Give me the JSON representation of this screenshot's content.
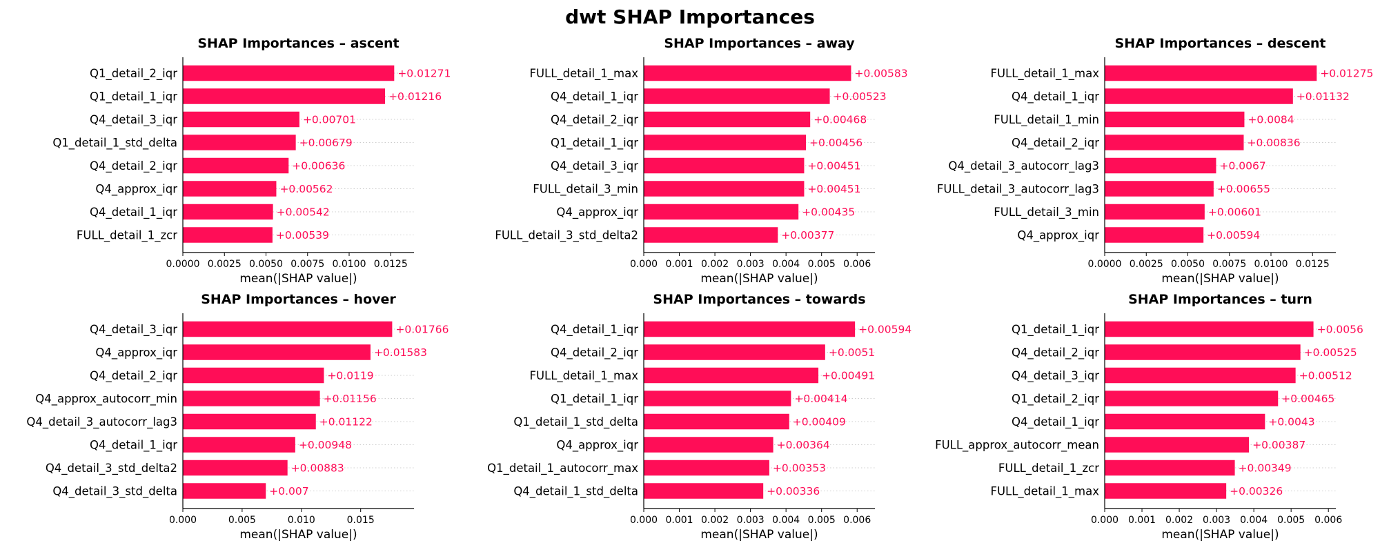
{
  "suptitle": "dwt SHAP Importances",
  "colors": {
    "bar": "#ff0d57",
    "label": "#ff0d57",
    "axis": "#000000",
    "guide": "#cccccc"
  },
  "chart_data": [
    {
      "type": "bar",
      "orientation": "horizontal",
      "title": "SHAP Importances – ascent",
      "xlabel": "mean(|SHAP value|)",
      "xlim": [
        0,
        0.0139
      ],
      "xticks": [
        "0.0000",
        "0.0025",
        "0.0050",
        "0.0075",
        "0.0100",
        "0.0125"
      ],
      "xtick_values": [
        0,
        0.0025,
        0.005,
        0.0075,
        0.01,
        0.0125
      ],
      "categories": [
        "Q1_detail_2_iqr",
        "Q1_detail_1_iqr",
        "Q4_detail_3_iqr",
        "Q1_detail_1_std_delta",
        "Q4_detail_2_iqr",
        "Q4_approx_iqr",
        "Q4_detail_1_iqr",
        "FULL_detail_1_zcr"
      ],
      "values": [
        0.01271,
        0.01216,
        0.00701,
        0.00679,
        0.00636,
        0.00562,
        0.00542,
        0.00539
      ],
      "value_labels": [
        "+0.01271",
        "+0.01216",
        "+0.00701",
        "+0.00679",
        "+0.00636",
        "+0.00562",
        "+0.00542",
        "+0.00539"
      ]
    },
    {
      "type": "bar",
      "orientation": "horizontal",
      "title": "SHAP Importances – away",
      "xlabel": "mean(|SHAP value|)",
      "xlim": [
        0,
        0.0065
      ],
      "xticks": [
        "0.000",
        "0.001",
        "0.002",
        "0.003",
        "0.004",
        "0.005",
        "0.006"
      ],
      "xtick_values": [
        0,
        0.001,
        0.002,
        0.003,
        0.004,
        0.005,
        0.006
      ],
      "categories": [
        "FULL_detail_1_max",
        "Q4_detail_1_iqr",
        "Q4_detail_2_iqr",
        "Q1_detail_1_iqr",
        "Q4_detail_3_iqr",
        "FULL_detail_3_min",
        "Q4_approx_iqr",
        "FULL_detail_3_std_delta2"
      ],
      "values": [
        0.00583,
        0.00523,
        0.00468,
        0.00456,
        0.00451,
        0.00451,
        0.00435,
        0.00377
      ],
      "value_labels": [
        "+0.00583",
        "+0.00523",
        "+0.00468",
        "+0.00456",
        "+0.00451",
        "+0.00451",
        "+0.00435",
        "+0.00377"
      ]
    },
    {
      "type": "bar",
      "orientation": "horizontal",
      "title": "SHAP Importances – descent",
      "xlabel": "mean(|SHAP value|)",
      "xlim": [
        0,
        0.0139
      ],
      "xticks": [
        "0.0000",
        "0.0025",
        "0.0050",
        "0.0075",
        "0.0100",
        "0.0125"
      ],
      "xtick_values": [
        0,
        0.0025,
        0.005,
        0.0075,
        0.01,
        0.0125
      ],
      "categories": [
        "FULL_detail_1_max",
        "Q4_detail_1_iqr",
        "FULL_detail_1_min",
        "Q4_detail_2_iqr",
        "Q4_detail_3_autocorr_lag3",
        "FULL_detail_3_autocorr_lag3",
        "FULL_detail_3_min",
        "Q4_approx_iqr"
      ],
      "values": [
        0.01275,
        0.01132,
        0.0084,
        0.00836,
        0.0067,
        0.00655,
        0.00601,
        0.00594
      ],
      "value_labels": [
        "+0.01275",
        "+0.01132",
        "+0.0084",
        "+0.00836",
        "+0.0067",
        "+0.00655",
        "+0.00601",
        "+0.00594"
      ]
    },
    {
      "type": "bar",
      "orientation": "horizontal",
      "title": "SHAP Importances – hover",
      "xlabel": "mean(|SHAP value|)",
      "xlim": [
        0,
        0.0195
      ],
      "xticks": [
        "0.000",
        "0.005",
        "0.010",
        "0.015"
      ],
      "xtick_values": [
        0,
        0.005,
        0.01,
        0.015
      ],
      "categories": [
        "Q4_detail_3_iqr",
        "Q4_approx_iqr",
        "Q4_detail_2_iqr",
        "Q4_approx_autocorr_min",
        "Q4_detail_3_autocorr_lag3",
        "Q4_detail_1_iqr",
        "Q4_detail_3_std_delta2",
        "Q4_detail_3_std_delta"
      ],
      "values": [
        0.01766,
        0.01583,
        0.0119,
        0.01156,
        0.01122,
        0.00948,
        0.00883,
        0.007
      ],
      "value_labels": [
        "+0.01766",
        "+0.01583",
        "+0.0119",
        "+0.01156",
        "+0.01122",
        "+0.00948",
        "+0.00883",
        "+0.007"
      ]
    },
    {
      "type": "bar",
      "orientation": "horizontal",
      "title": "SHAP Importances – towards",
      "xlabel": "mean(|SHAP value|)",
      "xlim": [
        0,
        0.0065
      ],
      "xticks": [
        "0.000",
        "0.001",
        "0.002",
        "0.003",
        "0.004",
        "0.005",
        "0.006"
      ],
      "xtick_values": [
        0,
        0.001,
        0.002,
        0.003,
        0.004,
        0.005,
        0.006
      ],
      "categories": [
        "Q4_detail_1_iqr",
        "Q4_detail_2_iqr",
        "FULL_detail_1_max",
        "Q1_detail_1_iqr",
        "Q1_detail_1_std_delta",
        "Q4_approx_iqr",
        "Q1_detail_1_autocorr_max",
        "Q4_detail_1_std_delta"
      ],
      "values": [
        0.00594,
        0.0051,
        0.00491,
        0.00414,
        0.00409,
        0.00364,
        0.00353,
        0.00336
      ],
      "value_labels": [
        "+0.00594",
        "+0.0051",
        "+0.00491",
        "+0.00414",
        "+0.00409",
        "+0.00364",
        "+0.00353",
        "+0.00336"
      ]
    },
    {
      "type": "bar",
      "orientation": "horizontal",
      "title": "SHAP Importances – turn",
      "xlabel": "mean(|SHAP value|)",
      "xlim": [
        0,
        0.0062
      ],
      "xticks": [
        "0.000",
        "0.001",
        "0.002",
        "0.003",
        "0.004",
        "0.005",
        "0.006"
      ],
      "xtick_values": [
        0,
        0.001,
        0.002,
        0.003,
        0.004,
        0.005,
        0.006
      ],
      "categories": [
        "Q1_detail_1_iqr",
        "Q4_detail_2_iqr",
        "Q4_detail_3_iqr",
        "Q1_detail_2_iqr",
        "Q4_detail_1_iqr",
        "FULL_approx_autocorr_mean",
        "FULL_detail_1_zcr",
        "FULL_detail_1_max"
      ],
      "values": [
        0.0056,
        0.00525,
        0.00512,
        0.00465,
        0.0043,
        0.00387,
        0.00349,
        0.00326
      ],
      "value_labels": [
        "+0.0056",
        "+0.00525",
        "+0.00512",
        "+0.00465",
        "+0.0043",
        "+0.00387",
        "+0.00349",
        "+0.00326"
      ]
    }
  ]
}
